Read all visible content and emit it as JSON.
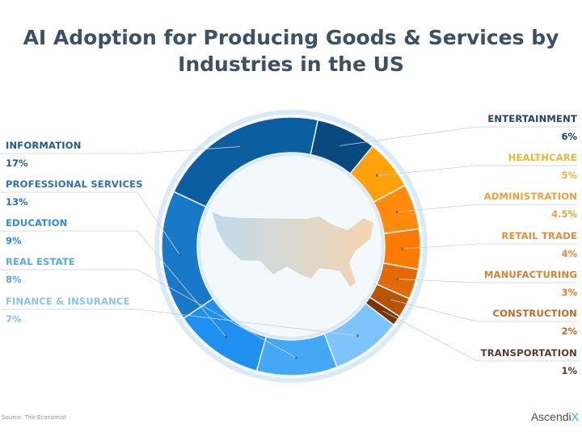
{
  "chart_data": {
    "type": "pie",
    "title": "AI Adoption for Producing Goods & Services by Industries in the US",
    "donut": true,
    "slices": [
      {
        "label": "ENTERTAINMENT",
        "value": 6,
        "display": "6%",
        "color": "#084a80",
        "side": "right"
      },
      {
        "label": "HEALTHCARE",
        "value": 5,
        "display": "5%",
        "color": "#ffa10a",
        "side": "right"
      },
      {
        "label": "ADMINISTRATION",
        "value": 4.5,
        "display": "4.5%",
        "color": "#ff8a0c",
        "side": "right"
      },
      {
        "label": "RETAIL TRADE",
        "value": 4,
        "display": "4%",
        "color": "#ff7a05",
        "side": "right"
      },
      {
        "label": "MANUFACTURING",
        "value": 3,
        "display": "3%",
        "color": "#e36a06",
        "side": "right"
      },
      {
        "label": "CONSTRUCTION",
        "value": 2,
        "display": "2%",
        "color": "#b85408",
        "side": "right"
      },
      {
        "label": "TRANSPORTATION",
        "value": 1,
        "display": "1%",
        "color": "#7a3506",
        "side": "right"
      },
      {
        "label": "FINANCE & INSURANCE",
        "value": 7,
        "display": "7%",
        "color": "#7cc4fb",
        "side": "left"
      },
      {
        "label": "REAL ESTATE",
        "value": 8,
        "display": "8%",
        "color": "#45a8f5",
        "side": "left"
      },
      {
        "label": "EDUCATION",
        "value": 9,
        "display": "9%",
        "color": "#1e90f0",
        "side": "left"
      },
      {
        "label": "PROFESSIONAL SERVICES",
        "value": 13,
        "display": "13%",
        "color": "#1a78c8",
        "side": "left"
      },
      {
        "label": "INFORMATION",
        "value": 17,
        "display": "17%",
        "color": "#0b5ea0",
        "side": "left"
      }
    ],
    "label_colors": {
      "ENTERTAINMENT": "#23405e",
      "HEALTHCARE": "#f5b335",
      "ADMINISTRATION": "#f0a040",
      "RETAIL TRADE": "#ec8a35",
      "MANUFACTURING": "#d98030",
      "CONSTRUCTION": "#c06a2a",
      "TRANSPORTATION": "#5a3a2a",
      "INFORMATION": "#1f5a8c",
      "PROFESSIONAL SERVICES": "#2a72b5",
      "EDUCATION": "#2f8ad8",
      "REAL ESTATE": "#5aa7e4",
      "FINANCE & INSURANCE": "#8cc3ee"
    }
  },
  "footer": {
    "source": "Source: The Economist",
    "brand": "Ascendi",
    "brand_accent": "X"
  }
}
